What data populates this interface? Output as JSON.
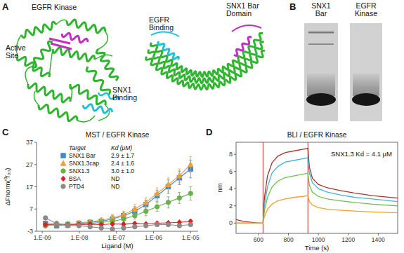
{
  "panels": {
    "A": {
      "letter": "A",
      "labels": [
        {
          "lines": [
            "EGFR Kinase"
          ]
        },
        {
          "lines": [
            "Active",
            "Site"
          ]
        },
        {
          "lines": [
            "SNX1",
            "Binding"
          ]
        },
        {
          "lines": [
            "EGFR",
            "Binding"
          ]
        },
        {
          "lines": [
            "SNX1 Bar",
            "Domain"
          ]
        }
      ]
    },
    "B": {
      "letter": "B",
      "lanes": [
        {
          "lines": [
            "SNX1",
            "Bar"
          ]
        },
        {
          "lines": [
            "EGFR",
            "Kinase"
          ]
        }
      ]
    },
    "C": {
      "letter": "C"
    },
    "D": {
      "letter": "D"
    }
  },
  "chart_data": [
    {
      "type": "scatter",
      "title": "MST / EGFR Kinase",
      "x_label": "Ligand (M)",
      "y_label": "ΔFnorm(⁰/₀₀)",
      "log": "x",
      "grid": false,
      "xlim": [
        7e-10,
        1.6e-05
      ],
      "ylim": [
        -3,
        37
      ],
      "xticks": [
        {
          "value": 1e-09,
          "label": "1.E-09"
        },
        {
          "value": 1e-08,
          "label": "1.E-08"
        },
        {
          "value": 1e-07,
          "label": "1.E-07"
        },
        {
          "value": 1e-06,
          "label": "1.E-06"
        },
        {
          "value": 1e-05,
          "label": "1.E-05"
        }
      ],
      "yticks": [
        -3,
        7,
        17,
        27,
        37
      ],
      "legend": "upper left",
      "legend_header": [
        "Target",
        "Kd (μM)"
      ],
      "x": [
        1.22e-09,
        2.44e-09,
        4.88e-09,
        9.77e-09,
        1.95e-08,
        3.91e-08,
        7.81e-08,
        1.56e-07,
        3.13e-07,
        6.25e-07,
        1.25e-06,
        2.5e-06,
        5e-06,
        1e-05
      ],
      "series": [
        {
          "name": "SNX1 Bar",
          "kd": "2.9 ± 1.7",
          "color": "#3f86d0",
          "marker": "square",
          "line_style": "solid",
          "values": [
            0.5,
            -0.5,
            0,
            0.5,
            1,
            1.5,
            2.5,
            4,
            6,
            9,
            13,
            17,
            21,
            25
          ],
          "errors": [
            1,
            1,
            1,
            1,
            1,
            1,
            1.5,
            1.5,
            2,
            2,
            2.5,
            3,
            3,
            4
          ]
        },
        {
          "name": "SNX1.3cap",
          "kd": "2.4 ± 1.6",
          "color": "#f0a035",
          "marker": "triangle",
          "line_style": "solid",
          "values": [
            0,
            0.5,
            -0.3,
            0.8,
            1.2,
            2,
            3,
            4.5,
            7,
            10,
            14,
            18,
            22,
            27
          ],
          "errors": [
            1,
            1,
            1,
            1,
            1,
            1,
            1.5,
            1.5,
            2,
            2,
            2.5,
            3,
            3,
            3.5
          ]
        },
        {
          "name": "SNX1.3",
          "kd": "3.0 ± 1.0",
          "color": "#6ab04c",
          "marker": "circle",
          "line_style": "solid",
          "values": [
            -0.5,
            0,
            0.3,
            0,
            0.5,
            1,
            1.5,
            2.5,
            4,
            6,
            8,
            10,
            12,
            14
          ],
          "errors": [
            1,
            1,
            1,
            1,
            1,
            1,
            1,
            1.5,
            1.5,
            2,
            2,
            2.5,
            2.5,
            3
          ]
        },
        {
          "name": "BSA",
          "kd": "ND",
          "color": "#e02020",
          "marker": "diamond",
          "line_style": "solid",
          "values": [
            0,
            0.3,
            -0.2,
            0,
            0.2,
            0,
            0.3,
            0.2,
            0.5,
            0.3,
            0.6,
            0.8,
            1,
            1.5
          ],
          "errors": [
            0.5,
            0.5,
            0.5,
            0.5,
            0.5,
            0.5,
            0.5,
            0.5,
            0.5,
            0.5,
            0.5,
            0.5,
            0.5,
            0.5
          ]
        },
        {
          "name": "PTD4",
          "kd": "ND",
          "color": "#8a8a8a",
          "marker": "circle",
          "line_style": "solid",
          "values": [
            3,
            0.5,
            -0.5,
            -0.5,
            -1,
            -1.5,
            -2,
            -1.5,
            -1,
            -0.5,
            0,
            0,
            -0.5,
            0
          ],
          "errors": [
            0.5,
            0.5,
            0.5,
            0.5,
            0.5,
            0.5,
            0.5,
            0.5,
            0.5,
            0.5,
            0.5,
            0.5,
            0.5,
            0.5
          ]
        }
      ]
    },
    {
      "type": "line",
      "title": "BLI / EGFR Kinase",
      "x_label": "Time (s)",
      "y_label": "nm",
      "grid": false,
      "annotation": "SNX1.3 Kd = 4.1 μM",
      "xlim": [
        450,
        1530
      ],
      "ylim": [
        -1.2,
        9.4
      ],
      "xticks": [
        600,
        800,
        1000,
        1200,
        1400
      ],
      "yticks": [
        0,
        2,
        4,
        6,
        8
      ],
      "vlines": [
        630,
        930
      ],
      "x": [
        450,
        500,
        550,
        600,
        630,
        640,
        660,
        690,
        730,
        780,
        840,
        900,
        930,
        940,
        960,
        1000,
        1060,
        1140,
        1240,
        1360,
        1530
      ],
      "series": [
        {
          "color": "#a8332a",
          "values": [
            0.4,
            0.2,
            0.1,
            0,
            0,
            3,
            5.5,
            7,
            7.8,
            8.2,
            8.4,
            8.6,
            8.7,
            6.5,
            5.2,
            4.5,
            4.1,
            3.8,
            3.5,
            3.2,
            2.9
          ]
        },
        {
          "color": "#3fb6d8",
          "values": [
            0,
            0,
            0,
            0,
            0,
            2.2,
            4.2,
            5.8,
            6.6,
            7.1,
            7.3,
            7.5,
            7.6,
            5.8,
            4.7,
            4.0,
            3.6,
            3.3,
            3.0,
            2.8,
            2.5
          ]
        },
        {
          "color": "#6cc04a",
          "values": [
            0,
            0,
            0,
            0,
            0,
            1.5,
            3,
            4.2,
            4.9,
            5.3,
            5.5,
            5.7,
            5.8,
            4.4,
            3.6,
            3.1,
            2.8,
            2.6,
            2.4,
            2.2,
            2.0
          ]
        },
        {
          "color": "#f0a030",
          "values": [
            0,
            0,
            0,
            0,
            0,
            0.8,
            1.6,
            2.2,
            2.6,
            2.8,
            3,
            3.1,
            3.2,
            2.5,
            2.1,
            1.8,
            1.6,
            1.5,
            1.4,
            1.3,
            1.2
          ]
        }
      ]
    }
  ]
}
